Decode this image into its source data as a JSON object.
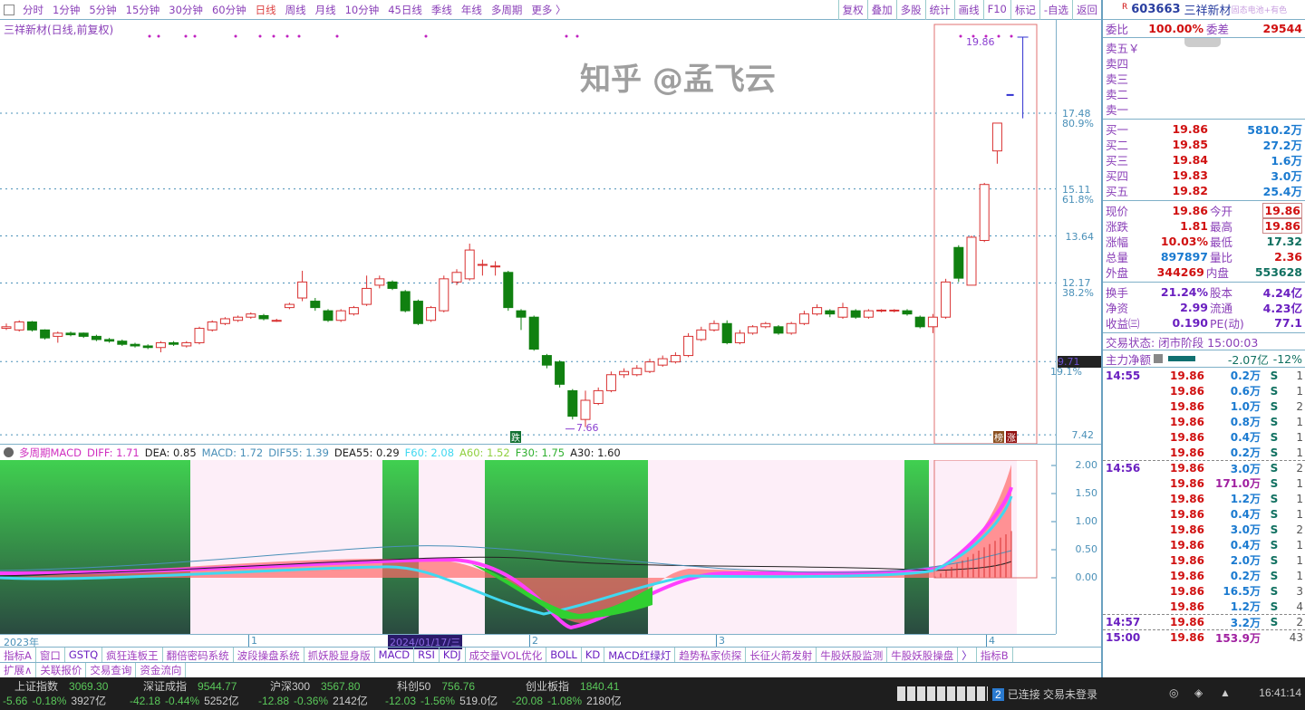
{
  "toolbar": {
    "periods": [
      "分时",
      "1分钟",
      "5分钟",
      "15分钟",
      "30分钟",
      "60分钟",
      "日线",
      "周线",
      "月线",
      "10分钟",
      "45日线",
      "季线",
      "年线",
      "多周期",
      "更多 〉"
    ],
    "active": "日线",
    "tools": [
      "复权",
      "叠加",
      "多股",
      "统计",
      "画线",
      "F10",
      "标记",
      "-自选",
      "返回"
    ]
  },
  "chart": {
    "title": "三祥新材(日线,前复权)",
    "last_label": "19.86",
    "low_label": "7.66",
    "die_badge": "跌",
    "bang_badge": "榜",
    "zhang_badge": "涨",
    "axis": [
      {
        "v": "17.48",
        "p": "80.9%"
      },
      {
        "v": "15.11",
        "p": "61.8%"
      },
      {
        "v": "13.64",
        "p": ""
      },
      {
        "v": "12.17",
        "p": "38.2%"
      },
      {
        "v": "9.71",
        "p": "19.1%"
      },
      {
        "v": "7.42",
        "p": ""
      }
    ],
    "candles": [
      [
        10.75,
        10.8,
        10.9,
        10.7
      ],
      [
        10.7,
        10.95,
        11.0,
        10.65
      ],
      [
        10.95,
        10.7,
        10.98,
        10.65
      ],
      [
        10.7,
        10.45,
        10.72,
        10.4
      ],
      [
        10.5,
        10.6,
        10.65,
        10.3
      ],
      [
        10.6,
        10.55,
        10.65,
        10.5
      ],
      [
        10.6,
        10.5,
        10.62,
        10.45
      ],
      [
        10.5,
        10.4,
        10.55,
        10.35
      ],
      [
        10.4,
        10.35,
        10.45,
        10.3
      ],
      [
        10.35,
        10.25,
        10.4,
        10.2
      ],
      [
        10.25,
        10.2,
        10.3,
        10.15
      ],
      [
        10.2,
        10.15,
        10.25,
        10.1
      ],
      [
        10.15,
        10.3,
        10.35,
        10.0
      ],
      [
        10.3,
        10.25,
        10.35,
        10.2
      ],
      [
        10.2,
        10.3,
        10.35,
        10.15
      ],
      [
        10.3,
        10.75,
        10.8,
        10.25
      ],
      [
        10.7,
        10.95,
        11.0,
        10.65
      ],
      [
        10.9,
        11.05,
        11.1,
        10.85
      ],
      [
        11.0,
        11.1,
        11.15,
        10.95
      ],
      [
        11.1,
        11.2,
        11.25,
        11.05
      ],
      [
        11.15,
        11.05,
        11.2,
        11.0
      ],
      [
        11.0,
        11.0,
        11.05,
        10.95
      ],
      [
        11.4,
        11.5,
        11.55,
        11.35
      ],
      [
        11.7,
        12.2,
        12.55,
        11.6
      ],
      [
        11.6,
        11.4,
        11.7,
        11.3
      ],
      [
        11.3,
        11.0,
        11.35,
        10.95
      ],
      [
        11.0,
        11.3,
        11.35,
        10.95
      ],
      [
        11.2,
        11.4,
        11.45,
        11.15
      ],
      [
        11.5,
        12.0,
        12.4,
        11.45
      ],
      [
        12.1,
        12.3,
        12.4,
        12.0
      ],
      [
        12.2,
        12.0,
        12.25,
        11.95
      ],
      [
        11.9,
        11.3,
        11.95,
        11.25
      ],
      [
        11.6,
        10.9,
        11.65,
        10.85
      ],
      [
        11.0,
        11.4,
        11.45,
        10.95
      ],
      [
        11.3,
        12.3,
        12.4,
        11.25
      ],
      [
        12.2,
        12.5,
        12.6,
        12.1
      ],
      [
        12.3,
        13.2,
        13.4,
        12.25
      ],
      [
        12.75,
        12.75,
        12.9,
        12.4
      ],
      [
        12.7,
        12.7,
        12.85,
        12.4
      ],
      [
        12.5,
        11.4,
        12.55,
        11.3
      ],
      [
        11.3,
        11.1,
        11.35,
        10.7
      ],
      [
        11.1,
        10.1,
        11.15,
        10.05
      ],
      [
        9.9,
        9.6,
        9.95,
        9.5
      ],
      [
        9.7,
        9.0,
        9.75,
        8.9
      ],
      [
        8.8,
        8.0,
        8.85,
        7.9
      ],
      [
        7.9,
        8.5,
        8.8,
        7.66
      ],
      [
        8.4,
        8.8,
        8.9,
        8.35
      ],
      [
        8.8,
        9.3,
        9.4,
        8.75
      ],
      [
        9.3,
        9.4,
        9.5,
        9.2
      ],
      [
        9.3,
        9.5,
        9.6,
        9.25
      ],
      [
        9.4,
        9.7,
        9.8,
        9.35
      ],
      [
        9.6,
        9.8,
        9.9,
        9.55
      ],
      [
        9.7,
        9.9,
        10.0,
        9.65
      ],
      [
        9.9,
        10.5,
        10.6,
        9.85
      ],
      [
        10.4,
        10.7,
        10.8,
        10.35
      ],
      [
        10.7,
        10.9,
        11.0,
        10.65
      ],
      [
        10.9,
        10.3,
        11.0,
        10.25
      ],
      [
        10.3,
        10.6,
        10.7,
        10.25
      ],
      [
        10.6,
        10.8,
        10.85,
        10.55
      ],
      [
        10.8,
        10.9,
        10.95,
        10.75
      ],
      [
        10.8,
        10.6,
        10.85,
        10.55
      ],
      [
        10.6,
        10.9,
        10.95,
        10.55
      ],
      [
        10.9,
        11.2,
        11.3,
        10.85
      ],
      [
        11.2,
        11.4,
        11.5,
        11.15
      ],
      [
        11.3,
        11.2,
        11.35,
        11.1
      ],
      [
        11.1,
        11.4,
        11.55,
        11.05
      ],
      [
        11.3,
        11.1,
        11.35,
        11.05
      ],
      [
        11.1,
        11.3,
        11.35,
        11.05
      ],
      [
        11.3,
        11.32,
        11.35,
        11.25
      ],
      [
        11.3,
        11.32,
        11.35,
        11.25
      ],
      [
        11.3,
        11.2,
        11.35,
        11.15
      ],
      [
        11.1,
        10.8,
        11.15,
        10.75
      ],
      [
        10.8,
        11.1,
        11.2,
        10.6
      ],
      [
        11.1,
        12.2,
        12.3,
        11.05
      ],
      [
        13.28,
        12.32,
        13.35,
        12.2
      ],
      [
        12.1,
        13.6,
        13.65,
        12.1
      ],
      [
        13.5,
        15.25,
        15.3,
        13.45
      ],
      [
        16.3,
        17.17,
        17.17,
        15.9
      ],
      [
        19.86,
        19.86,
        19.86,
        17.32
      ]
    ],
    "colors": {
      "up": "#d83030",
      "down": "#108010",
      "grid": "#4a90b8"
    }
  },
  "macd": {
    "name": "多周期MACD",
    "items": [
      {
        "k": "DIFF: 1.71",
        "c": "#d030c0"
      },
      {
        "k": "DEA: 0.85",
        "c": "#222"
      },
      {
        "k": "MACD: 1.72",
        "c": "#4a90b8"
      },
      {
        "k": "DIF55: 1.39",
        "c": "#4a90b8"
      },
      {
        "k": "DEA55: 0.29",
        "c": "#222"
      },
      {
        "k": "F60: 2.08",
        "c": "#40d8f0"
      },
      {
        "k": "A60: 1.52",
        "c": "#90d040"
      },
      {
        "k": "F30: 1.75",
        "c": "#30b030"
      },
      {
        "k": "A30: 1.60",
        "c": "#222"
      }
    ],
    "axis": [
      "2.00",
      "1.50",
      "1.00",
      "0.50",
      "0.00"
    ]
  },
  "dates": {
    "year": "2023年",
    "m1": "1",
    "cursor": "2024/01/17/三",
    "m2": "2",
    "m3": "3",
    "m4": "4"
  },
  "tabs": [
    "指标A",
    "窗口",
    "GSTQ",
    "疯狂连板王",
    "翻倍密码系统",
    "波段操盘系统",
    "抓妖股显身版",
    "MACD",
    "RSI",
    "KDJ",
    "成交量VOL优化",
    "BOLL",
    "KD",
    "MACD红绿灯",
    "趋势私家侦探",
    "长征火箭发射",
    "牛股妖股监测",
    "牛股妖股操盘",
    "〉",
    "指标B"
  ],
  "ext": [
    "扩展∧",
    "关联报价",
    "交易查询",
    "资金流向"
  ],
  "quote": {
    "code": "603663",
    "name": "三祥新材",
    "tags": "固态电池+有色",
    "weibi_l": "委比",
    "weibi": "100.00%",
    "weicha_l": "委差",
    "weicha": "29544",
    "asks": [
      "卖五￥",
      "卖四",
      "卖三",
      "卖二",
      "卖一"
    ],
    "bids": [
      {
        "l": "买一",
        "p": "19.86",
        "v": "5810.2万"
      },
      {
        "l": "买二",
        "p": "19.85",
        "v": "27.2万"
      },
      {
        "l": "买三",
        "p": "19.84",
        "v": "1.6万"
      },
      {
        "l": "买四",
        "p": "19.83",
        "v": "3.0万"
      },
      {
        "l": "买五",
        "p": "19.82",
        "v": "25.4万"
      }
    ],
    "stats": [
      [
        "现价",
        "19.86",
        "今开",
        "19.86"
      ],
      [
        "涨跌",
        "1.81",
        "最高",
        "19.86"
      ],
      [
        "涨幅",
        "10.03%",
        "最低",
        "17.32"
      ],
      [
        "总量",
        "897897",
        "量比",
        "2.36"
      ],
      [
        "外盘",
        "344269",
        "内盘",
        "553628"
      ]
    ],
    "stats2": [
      [
        "换手",
        "21.24%",
        "股本",
        "4.24亿"
      ],
      [
        "净资",
        "2.99",
        "流通",
        "4.23亿"
      ],
      [
        "收益㈢",
        "0.190",
        "PE(动)",
        "77.1"
      ]
    ],
    "status": "交易状态: 闭市阶段 15:00:03",
    "main_l": "主力净额",
    "main_v": "-2.07亿",
    "main_p": "-12%"
  },
  "ticks": [
    {
      "t": "14:55",
      "p": "19.86",
      "v": "0.2万",
      "s": "S",
      "n": "1"
    },
    {
      "t": "",
      "p": "19.86",
      "v": "0.6万",
      "s": "S",
      "n": "1"
    },
    {
      "t": "",
      "p": "19.86",
      "v": "1.0万",
      "s": "S",
      "n": "2"
    },
    {
      "t": "",
      "p": "19.86",
      "v": "0.8万",
      "s": "S",
      "n": "1"
    },
    {
      "t": "",
      "p": "19.86",
      "v": "0.4万",
      "s": "S",
      "n": "1"
    },
    {
      "t": "",
      "p": "19.86",
      "v": "0.2万",
      "s": "S",
      "n": "1"
    },
    {
      "t": "14:56",
      "p": "19.86",
      "v": "3.0万",
      "s": "S",
      "n": "2"
    },
    {
      "t": "",
      "p": "19.86",
      "v": "171.0万",
      "s": "S",
      "n": "1"
    },
    {
      "t": "",
      "p": "19.86",
      "v": "1.2万",
      "s": "S",
      "n": "1"
    },
    {
      "t": "",
      "p": "19.86",
      "v": "0.4万",
      "s": "S",
      "n": "1"
    },
    {
      "t": "",
      "p": "19.86",
      "v": "3.0万",
      "s": "S",
      "n": "2"
    },
    {
      "t": "",
      "p": "19.86",
      "v": "0.4万",
      "s": "S",
      "n": "1"
    },
    {
      "t": "",
      "p": "19.86",
      "v": "2.0万",
      "s": "S",
      "n": "1"
    },
    {
      "t": "",
      "p": "19.86",
      "v": "0.2万",
      "s": "S",
      "n": "1"
    },
    {
      "t": "",
      "p": "19.86",
      "v": "16.5万",
      "s": "S",
      "n": "3"
    },
    {
      "t": "",
      "p": "19.86",
      "v": "1.2万",
      "s": "S",
      "n": "4"
    },
    {
      "t": "14:57",
      "p": "19.86",
      "v": "3.2万",
      "s": "S",
      "n": "2"
    },
    {
      "t": "15:00",
      "p": "19.86",
      "v": "153.9万",
      "s": "",
      "n": "43"
    }
  ],
  "indices": [
    {
      "n": "上证指数",
      "v": "3069.30",
      "c": "-5.66",
      "p": "-0.18%",
      "a": "3927亿"
    },
    {
      "n": "深证成指",
      "v": "9544.77",
      "c": "-42.18",
      "p": "-0.44%",
      "a": "5252亿"
    },
    {
      "n": "沪深300",
      "v": "3567.80",
      "c": "-12.88",
      "p": "-0.36%",
      "a": "2142亿"
    },
    {
      "n": "科创50",
      "v": "756.76",
      "c": "-12.03",
      "p": "-1.56%",
      "a": "519.0亿"
    },
    {
      "n": "创业板指",
      "v": "1840.41",
      "c": "-20.08",
      "p": "-1.08%",
      "a": "2180亿"
    }
  ],
  "statusbar": {
    "num": "2",
    "conn": "已连接 交易未登录",
    "time": "16:41:14"
  },
  "watermark": "知乎 @孟飞云"
}
